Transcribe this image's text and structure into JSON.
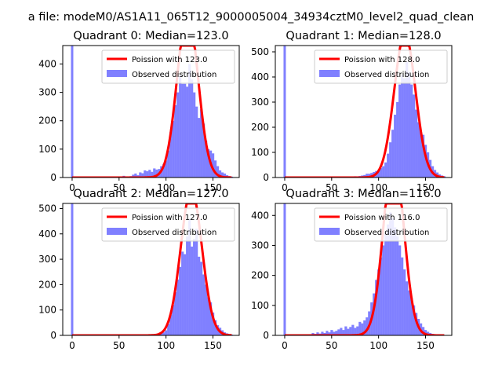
{
  "figure": {
    "suptitle": "a file: modeM0/AS1A11_065T12_9000005004_34934cztM0_level2_quad_clean"
  },
  "chart_data": [
    {
      "type": "bar",
      "title": "Quadrant 0: Median=123.0",
      "median": 123.0,
      "xlim": [
        -10,
        178
      ],
      "ylim": [
        0,
        465
      ],
      "xticks": [
        0,
        50,
        100,
        150
      ],
      "yticks": [
        0,
        100,
        200,
        300,
        400
      ],
      "bin_width": 2.5,
      "legend": {
        "placement": "top-right",
        "line_label": "Poission with 123.0",
        "bar_label": "Observed distribution",
        "line_color": "#ff0000",
        "bar_color": "#8080ff"
      },
      "zero_bin": {
        "x": 0,
        "value": 465
      },
      "bins": [
        [
          52.5,
          3
        ],
        [
          55,
          6
        ],
        [
          57.5,
          4
        ],
        [
          60,
          2
        ],
        [
          62.5,
          5
        ],
        [
          65,
          10
        ],
        [
          67.5,
          14
        ],
        [
          70,
          8
        ],
        [
          72.5,
          18
        ],
        [
          75,
          15
        ],
        [
          77.5,
          25
        ],
        [
          80,
          22
        ],
        [
          82.5,
          27
        ],
        [
          85,
          20
        ],
        [
          87.5,
          32
        ],
        [
          90,
          28
        ],
        [
          92.5,
          30
        ],
        [
          95,
          40
        ],
        [
          97.5,
          48
        ],
        [
          100,
          60
        ],
        [
          102.5,
          95
        ],
        [
          105,
          160
        ],
        [
          107.5,
          200
        ],
        [
          110,
          255
        ],
        [
          112.5,
          300
        ],
        [
          115,
          360
        ],
        [
          117.5,
          330
        ],
        [
          120,
          330
        ],
        [
          122.5,
          320
        ],
        [
          125,
          400
        ],
        [
          127.5,
          345
        ],
        [
          130,
          300
        ],
        [
          132.5,
          250
        ],
        [
          135,
          210
        ],
        [
          137.5,
          240
        ],
        [
          140,
          190
        ],
        [
          142.5,
          130
        ],
        [
          145,
          100
        ],
        [
          147.5,
          95
        ],
        [
          150,
          85
        ],
        [
          152.5,
          60
        ],
        [
          155,
          40
        ],
        [
          157.5,
          25
        ],
        [
          160,
          18
        ],
        [
          162.5,
          14
        ],
        [
          165,
          8
        ],
        [
          167.5,
          5
        ],
        [
          170,
          3
        ]
      ]
    },
    {
      "type": "bar",
      "title": "Quadrant 1: Median=128.0",
      "median": 128.0,
      "xlim": [
        -10,
        178
      ],
      "ylim": [
        0,
        525
      ],
      "xticks": [
        0,
        50,
        100,
        150
      ],
      "yticks": [
        0,
        100,
        200,
        300,
        400,
        500
      ],
      "bin_width": 2.5,
      "legend": {
        "placement": "top-right",
        "line_label": "Poission with 128.0",
        "bar_label": "Observed distribution",
        "line_color": "#ff0000",
        "bar_color": "#8080ff"
      },
      "zero_bin": {
        "x": 0,
        "value": 525
      },
      "bins": [
        [
          70,
          3
        ],
        [
          72.5,
          4
        ],
        [
          75,
          5
        ],
        [
          77.5,
          4
        ],
        [
          80,
          6
        ],
        [
          82.5,
          8
        ],
        [
          85,
          10
        ],
        [
          87.5,
          15
        ],
        [
          90,
          15
        ],
        [
          92.5,
          18
        ],
        [
          95,
          22
        ],
        [
          97.5,
          26
        ],
        [
          100,
          30
        ],
        [
          102.5,
          38
        ],
        [
          105,
          45
        ],
        [
          107.5,
          60
        ],
        [
          110,
          95
        ],
        [
          112.5,
          140
        ],
        [
          115,
          190
        ],
        [
          117.5,
          250
        ],
        [
          120,
          300
        ],
        [
          122.5,
          370
        ],
        [
          125,
          410
        ],
        [
          127.5,
          395
        ],
        [
          130,
          460
        ],
        [
          132.5,
          420
        ],
        [
          135,
          370
        ],
        [
          137.5,
          330
        ],
        [
          140,
          270
        ],
        [
          142.5,
          220
        ],
        [
          145,
          180
        ],
        [
          147.5,
          170
        ],
        [
          150,
          130
        ],
        [
          152.5,
          100
        ],
        [
          155,
          70
        ],
        [
          157.5,
          45
        ],
        [
          160,
          30
        ],
        [
          162.5,
          20
        ],
        [
          165,
          12
        ],
        [
          167.5,
          8
        ],
        [
          170,
          5
        ]
      ]
    },
    {
      "type": "bar",
      "title": "Quadrant 2: Median=127.0",
      "median": 127.0,
      "xlim": [
        -10,
        178
      ],
      "ylim": [
        0,
        520
      ],
      "xticks": [
        0,
        50,
        100,
        150
      ],
      "yticks": [
        0,
        100,
        200,
        300,
        400,
        500
      ],
      "bin_width": 2.5,
      "legend": {
        "placement": "top-right",
        "line_label": "Poission with 127.0",
        "bar_label": "Observed distribution",
        "line_color": "#ff0000",
        "bar_color": "#8080ff"
      },
      "zero_bin": {
        "x": 0,
        "value": 520
      },
      "bins": [
        [
          90,
          3
        ],
        [
          92.5,
          5
        ],
        [
          95,
          8
        ],
        [
          97.5,
          12
        ],
        [
          100,
          20
        ],
        [
          102.5,
          45
        ],
        [
          105,
          80
        ],
        [
          107.5,
          120
        ],
        [
          110,
          170
        ],
        [
          112.5,
          220
        ],
        [
          115,
          270
        ],
        [
          117.5,
          330
        ],
        [
          120,
          320
        ],
        [
          122.5,
          390
        ],
        [
          125,
          460
        ],
        [
          127.5,
          350
        ],
        [
          130,
          380
        ],
        [
          132.5,
          420
        ],
        [
          135,
          310
        ],
        [
          137.5,
          290
        ],
        [
          140,
          240
        ],
        [
          142.5,
          200
        ],
        [
          145,
          150
        ],
        [
          147.5,
          130
        ],
        [
          150,
          90
        ],
        [
          152.5,
          60
        ],
        [
          155,
          40
        ],
        [
          157.5,
          30
        ],
        [
          160,
          20
        ],
        [
          162.5,
          12
        ],
        [
          165,
          8
        ],
        [
          167.5,
          5
        ],
        [
          170,
          3
        ]
      ]
    },
    {
      "type": "bar",
      "title": "Quadrant 3: Median=116.0",
      "median": 116.0,
      "xlim": [
        -10,
        178
      ],
      "ylim": [
        0,
        440
      ],
      "xticks": [
        0,
        50,
        100,
        150
      ],
      "yticks": [
        0,
        100,
        200,
        300,
        400
      ],
      "bin_width": 2.5,
      "legend": {
        "placement": "top-right",
        "line_label": "Poission with 116.0",
        "bar_label": "Observed distribution",
        "line_color": "#ff0000",
        "bar_color": "#8080ff"
      },
      "zero_bin": {
        "x": 0,
        "value": 440
      },
      "bins": [
        [
          25,
          3
        ],
        [
          27.5,
          4
        ],
        [
          30,
          8
        ],
        [
          32.5,
          5
        ],
        [
          35,
          10
        ],
        [
          37.5,
          6
        ],
        [
          40,
          12
        ],
        [
          42.5,
          8
        ],
        [
          45,
          15
        ],
        [
          47.5,
          10
        ],
        [
          50,
          18
        ],
        [
          52.5,
          12
        ],
        [
          55,
          15
        ],
        [
          57.5,
          20
        ],
        [
          60,
          25
        ],
        [
          62.5,
          18
        ],
        [
          65,
          30
        ],
        [
          67.5,
          22
        ],
        [
          70,
          28
        ],
        [
          72.5,
          35
        ],
        [
          75,
          25
        ],
        [
          77.5,
          30
        ],
        [
          80,
          45
        ],
        [
          82.5,
          40
        ],
        [
          85,
          50
        ],
        [
          87.5,
          60
        ],
        [
          90,
          80
        ],
        [
          92.5,
          110
        ],
        [
          95,
          140
        ],
        [
          97.5,
          185
        ],
        [
          100,
          220
        ],
        [
          102.5,
          260
        ],
        [
          105,
          300
        ],
        [
          107.5,
          340
        ],
        [
          110,
          370
        ],
        [
          112.5,
          410
        ],
        [
          115,
          390
        ],
        [
          117.5,
          360
        ],
        [
          120,
          330
        ],
        [
          122.5,
          300
        ],
        [
          125,
          260
        ],
        [
          127.5,
          220
        ],
        [
          130,
          180
        ],
        [
          132.5,
          150
        ],
        [
          135,
          125
        ],
        [
          137.5,
          100
        ],
        [
          140,
          75
        ],
        [
          142.5,
          55
        ],
        [
          145,
          40
        ],
        [
          147.5,
          28
        ],
        [
          150,
          18
        ],
        [
          152.5,
          12
        ],
        [
          155,
          8
        ],
        [
          157.5,
          5
        ]
      ]
    }
  ]
}
